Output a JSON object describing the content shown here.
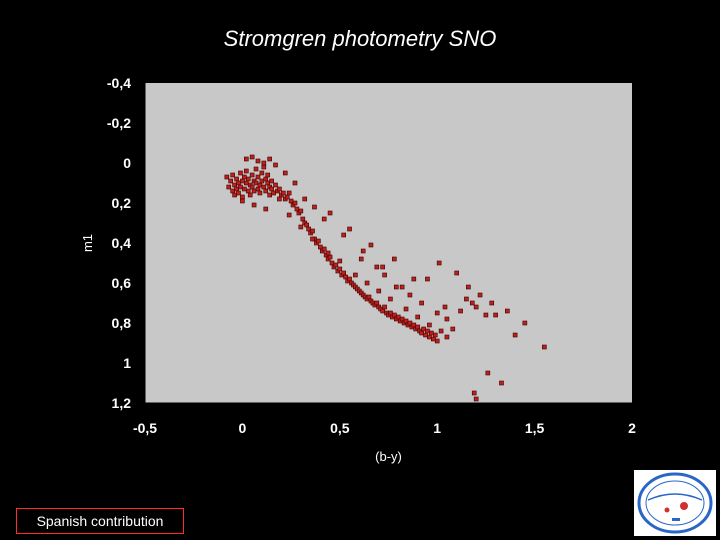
{
  "slide": {
    "footer": "Spanish contribution"
  },
  "colors": {
    "background": "#000000",
    "plot_area": "#c8c8c8",
    "marker_fill": "#c0201c",
    "marker_edge": "#3a0000",
    "footer_border": "#ff2a2a"
  },
  "logo": {
    "icon": "institute-seal-icon"
  },
  "chart_data": {
    "type": "scatter",
    "title": "Stromgren photometry SNO",
    "xlabel": "(b-y)",
    "ylabel": "m1",
    "xlim": [
      -0.5,
      2
    ],
    "ylim": [
      -0.4,
      1.2
    ],
    "y_inverted": true,
    "grid": false,
    "legend": "none",
    "x_ticks": [
      "-0,5",
      "0",
      "0,5",
      "1",
      "1,5",
      "2"
    ],
    "y_ticks": [
      "-0,4",
      "-0,2",
      "0",
      "0,2",
      "0,4",
      "0,6",
      "0,8",
      "1",
      "1,2"
    ],
    "series": [
      {
        "x": [
          -0.08,
          -0.07,
          -0.06,
          -0.05,
          -0.05,
          -0.04,
          -0.04,
          -0.03,
          -0.03,
          -0.02,
          -0.02,
          -0.01,
          -0.01,
          0.0,
          0.0,
          0.01,
          0.01,
          0.02,
          0.02,
          0.03,
          0.03,
          0.04,
          0.04,
          0.05,
          0.05,
          0.06,
          0.06,
          0.07,
          0.07,
          0.08,
          0.08,
          0.09,
          0.09,
          0.1,
          0.1,
          0.11,
          0.11,
          0.12,
          0.12,
          0.13,
          0.13,
          0.14,
          0.14,
          0.15,
          0.15,
          0.16,
          0.17,
          0.18,
          0.19,
          0.2,
          0.21,
          0.22,
          0.23,
          0.24,
          0.25,
          0.26,
          0.27,
          0.28,
          0.29,
          0.3,
          0.31,
          0.32,
          0.33,
          0.34,
          0.35,
          0.36,
          0.37,
          0.38,
          0.39,
          0.4,
          0.41,
          0.42,
          0.43,
          0.44,
          0.45,
          0.46,
          0.47,
          0.48,
          0.49,
          0.5,
          0.51,
          0.52,
          0.53,
          0.54,
          0.55,
          0.56,
          0.57,
          0.58,
          0.59,
          0.6,
          0.61,
          0.62,
          0.63,
          0.64,
          0.65,
          0.66,
          0.67,
          0.68,
          0.69,
          0.7,
          0.71,
          0.72,
          0.73,
          0.74,
          0.75,
          0.76,
          0.77,
          0.78,
          0.79,
          0.8,
          0.81,
          0.82,
          0.83,
          0.84,
          0.85,
          0.86,
          0.87,
          0.88,
          0.89,
          0.9,
          0.91,
          0.92,
          0.93,
          0.94,
          0.95,
          0.96,
          0.97,
          0.98,
          0.99,
          1.0,
          1.02,
          1.05,
          1.08,
          0.02,
          0.05,
          0.08,
          0.11,
          0.14,
          0.17,
          0.22,
          0.27,
          0.32,
          0.37,
          0.42,
          0.52,
          0.62,
          0.72,
          0.82,
          0.92,
          1.05,
          1.12,
          1.18,
          1.25,
          0.45,
          0.55,
          0.66,
          0.78,
          0.88,
          1.15,
          1.2,
          1.3,
          1.4,
          1.55,
          0.0,
          0.06,
          0.12,
          0.19,
          0.24,
          0.3,
          0.36,
          0.44,
          0.5,
          0.58,
          0.64,
          0.7,
          0.76,
          0.84,
          0.9,
          0.96,
          1.0,
          1.04,
          0.61,
          0.69,
          0.73,
          0.79,
          0.86,
          0.95,
          1.01,
          1.1,
          1.16,
          1.22,
          1.28,
          1.36,
          1.45,
          1.33,
          1.2,
          1.26,
          1.19
        ],
        "y": [
          0.07,
          0.12,
          0.09,
          0.14,
          0.06,
          0.11,
          0.16,
          0.08,
          0.13,
          0.1,
          0.15,
          0.05,
          0.12,
          0.09,
          0.17,
          0.07,
          0.13,
          0.1,
          0.04,
          0.14,
          0.08,
          0.11,
          0.16,
          0.06,
          0.12,
          0.09,
          0.14,
          0.03,
          0.1,
          0.13,
          0.07,
          0.11,
          0.15,
          0.05,
          0.09,
          0.12,
          0.02,
          0.08,
          0.14,
          0.1,
          0.06,
          0.12,
          0.16,
          0.09,
          0.13,
          0.15,
          0.11,
          0.14,
          0.13,
          0.16,
          0.15,
          0.18,
          0.17,
          0.15,
          0.19,
          0.21,
          0.2,
          0.23,
          0.25,
          0.24,
          0.28,
          0.3,
          0.31,
          0.33,
          0.35,
          0.34,
          0.38,
          0.4,
          0.39,
          0.42,
          0.44,
          0.43,
          0.46,
          0.48,
          0.47,
          0.5,
          0.52,
          0.51,
          0.54,
          0.53,
          0.56,
          0.55,
          0.57,
          0.59,
          0.58,
          0.6,
          0.61,
          0.62,
          0.63,
          0.64,
          0.65,
          0.66,
          0.67,
          0.68,
          0.67,
          0.69,
          0.7,
          0.71,
          0.7,
          0.72,
          0.73,
          0.74,
          0.72,
          0.75,
          0.76,
          0.75,
          0.77,
          0.76,
          0.78,
          0.77,
          0.79,
          0.78,
          0.8,
          0.79,
          0.81,
          0.8,
          0.82,
          0.81,
          0.83,
          0.82,
          0.84,
          0.85,
          0.83,
          0.86,
          0.84,
          0.87,
          0.85,
          0.88,
          0.86,
          0.89,
          0.84,
          0.87,
          0.83,
          -0.02,
          -0.03,
          -0.01,
          0.0,
          -0.02,
          0.01,
          0.05,
          0.1,
          0.18,
          0.22,
          0.28,
          0.36,
          0.44,
          0.52,
          0.62,
          0.7,
          0.78,
          0.74,
          0.7,
          0.76,
          0.25,
          0.33,
          0.41,
          0.48,
          0.58,
          0.68,
          0.72,
          0.76,
          0.86,
          0.92,
          0.19,
          0.21,
          0.23,
          0.18,
          0.26,
          0.32,
          0.38,
          0.45,
          0.49,
          0.56,
          0.6,
          0.64,
          0.68,
          0.73,
          0.77,
          0.81,
          0.75,
          0.72,
          0.48,
          0.52,
          0.56,
          0.62,
          0.66,
          0.58,
          0.5,
          0.55,
          0.62,
          0.66,
          0.7,
          0.74,
          0.8,
          1.1,
          1.18,
          1.05,
          1.15
        ]
      }
    ]
  }
}
